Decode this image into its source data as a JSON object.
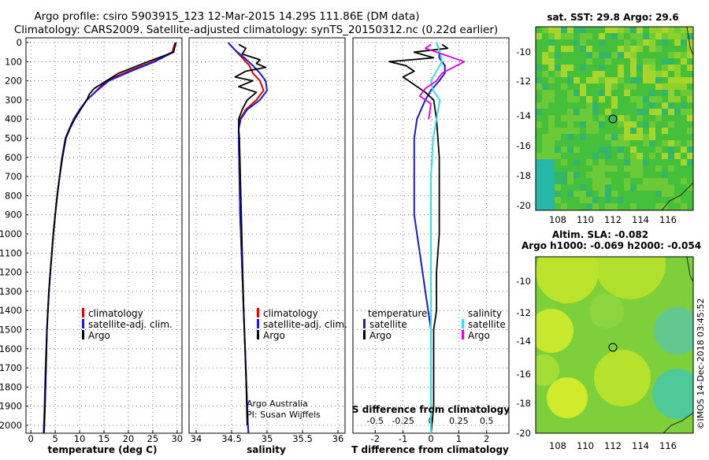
{
  "title_line1": "Argo profile: csiro 5903915_123 12-Mar-2015 14.29S 111.86E (DM data)",
  "title_line2": "Climatology: CARS2009. Satellite-adjusted climatology: synTS_20150312.nc (0.22d earlier)",
  "side_stamp": "©IMOS 14-Dec-2018 03:45:52",
  "colors": {
    "climatology": "#e00000",
    "satellite": "#1a1ad8",
    "argo": "#000000",
    "sat_salinity": "#33e0e8",
    "argo_salinity_diff": "#e000e0"
  },
  "depth_ticks": [
    0,
    100,
    200,
    300,
    400,
    500,
    600,
    700,
    800,
    900,
    1000,
    1100,
    1200,
    1300,
    1400,
    1500,
    1600,
    1700,
    1800,
    1900,
    2000
  ],
  "temperature_panel": {
    "xlabel": "temperature (deg C)",
    "xticks": [
      0,
      5,
      10,
      15,
      20,
      25,
      30
    ],
    "legend": [
      "climatology",
      "satellite-adj. clim.",
      "Argo"
    ]
  },
  "salinity_panel": {
    "xlabel": "salinity",
    "xticks": [
      "34",
      "34.5",
      "35",
      "35.5",
      "36"
    ],
    "legend": [
      "climatology",
      "satellite-adj. clim.",
      "Argo"
    ],
    "credit_line1": "Argo Australia",
    "credit_line2": "PI: Susan Wijffels"
  },
  "difference_panel": {
    "xlabel": "T difference from climatology",
    "xticks": [
      "-2",
      "-1",
      "0",
      "1",
      "2"
    ],
    "s_label": "S difference from climatology",
    "s_ticks": [
      "-0.5",
      "-0.25",
      "0",
      "0.25",
      "0.5"
    ],
    "legend_temperature_title": "temperature",
    "legend_salinity_title": "salinity",
    "legend_temperature": [
      "satellite",
      "Argo"
    ],
    "legend_salinity": [
      "satellite",
      "Argo"
    ]
  },
  "sst_map": {
    "title": "sat. SST: 29.8 Argo: 29.6",
    "xticks": [
      "108",
      "110",
      "112",
      "114",
      "116"
    ],
    "yticks": [
      "-10",
      "-12",
      "-14",
      "-16",
      "-18",
      "-20"
    ]
  },
  "sla_map": {
    "title_line1": "Altim. SLA: -0.082",
    "title_line2": "Argo h1000: -0.069 h2000: -0.054",
    "xticks": [
      "108",
      "110",
      "112",
      "114",
      "116"
    ],
    "yticks": [
      "-10",
      "-12",
      "-14",
      "-16",
      "-18",
      "-20"
    ]
  },
  "chart_data": [
    {
      "type": "line",
      "title": "",
      "xlabel": "temperature (deg C)",
      "ylabel": "",
      "xlim": [
        -1,
        31
      ],
      "ylim": [
        2060,
        0
      ],
      "series": [
        {
          "name": "climatology",
          "x": [
            29.6,
            29.0,
            25.0,
            20.0,
            15.5,
            13.5,
            11.5,
            10.0,
            8.8,
            7.9,
            7.1,
            6.4,
            5.9,
            5.4,
            5.0,
            4.6,
            4.3,
            4.0,
            3.7,
            3.5,
            3.3,
            3.1,
            2.9,
            2.7
          ],
          "y": [
            0,
            50,
            100,
            150,
            200,
            250,
            300,
            350,
            400,
            450,
            500,
            600,
            700,
            800,
            900,
            1000,
            1100,
            1200,
            1300,
            1400,
            1500,
            1700,
            1900,
            2050
          ]
        },
        {
          "name": "satellite-adj. clim.",
          "x": [
            29.8,
            29.2,
            25.4,
            20.5,
            16.0,
            13.6,
            11.5,
            10.0,
            8.8,
            7.9,
            7.1,
            6.4,
            5.9,
            5.4,
            5.0,
            4.6,
            4.3,
            4.0,
            3.7,
            3.5,
            3.3,
            3.0,
            2.8,
            2.6
          ],
          "y": [
            0,
            50,
            100,
            150,
            200,
            250,
            300,
            350,
            400,
            450,
            500,
            600,
            700,
            800,
            900,
            1000,
            1100,
            1200,
            1300,
            1400,
            1500,
            1700,
            1900,
            2050
          ]
        },
        {
          "name": "Argo",
          "x": [
            29.6,
            29.3,
            24.0,
            18.0,
            15.5,
            13.0,
            12.0,
            11.5,
            10.2,
            9.0,
            8.0,
            7.2,
            6.5,
            5.9,
            5.4,
            5.0,
            4.6,
            4.3,
            4.0,
            3.7,
            3.5,
            3.3,
            3.1,
            2.9,
            2.7
          ],
          "y": [
            5,
            50,
            100,
            160,
            200,
            240,
            270,
            300,
            350,
            400,
            450,
            500,
            600,
            700,
            800,
            900,
            1000,
            1100,
            1200,
            1300,
            1400,
            1500,
            1700,
            1900,
            2050
          ]
        }
      ]
    },
    {
      "type": "line",
      "title": "",
      "xlabel": "salinity",
      "ylabel": "",
      "xlim": [
        33.9,
        36.1
      ],
      "ylim": [
        2060,
        0
      ],
      "series": [
        {
          "name": "climatology",
          "x": [
            34.45,
            34.55,
            34.65,
            34.75,
            34.8,
            34.9,
            34.95,
            34.85,
            34.7,
            34.62,
            34.6,
            34.6,
            34.61,
            34.62,
            34.64,
            34.66,
            34.68,
            34.7,
            34.72,
            34.73,
            34.74
          ],
          "y": [
            0,
            40,
            80,
            120,
            160,
            200,
            250,
            300,
            350,
            400,
            450,
            500,
            700,
            900,
            1100,
            1300,
            1500,
            1700,
            1900,
            2000,
            2050
          ]
        },
        {
          "name": "satellite-adj. clim.",
          "x": [
            34.45,
            34.55,
            34.68,
            34.8,
            34.9,
            34.98,
            35.0,
            34.9,
            34.72,
            34.63,
            34.6,
            34.6,
            34.61,
            34.62,
            34.64,
            34.66,
            34.68,
            34.7,
            34.72,
            34.73,
            34.74
          ],
          "y": [
            0,
            40,
            80,
            120,
            160,
            200,
            250,
            300,
            350,
            400,
            450,
            500,
            700,
            900,
            1100,
            1300,
            1500,
            1700,
            1900,
            2000,
            2050
          ]
        },
        {
          "name": "Argo",
          "x": [
            34.6,
            34.7,
            34.65,
            34.9,
            34.85,
            34.98,
            34.7,
            34.55,
            34.8,
            34.6,
            34.85,
            34.72,
            34.65,
            34.6,
            34.6,
            34.61,
            34.63,
            34.65,
            34.67,
            34.7,
            34.72
          ],
          "y": [
            10,
            30,
            60,
            90,
            110,
            130,
            150,
            180,
            200,
            230,
            260,
            300,
            350,
            400,
            450,
            500,
            800,
            1100,
            1400,
            1700,
            2000
          ]
        }
      ]
    },
    {
      "type": "line",
      "title": "",
      "xlabel": "T difference from climatology",
      "ylabel": "",
      "xlim": [
        -2.8,
        2.8
      ],
      "ylim": [
        2060,
        0
      ],
      "secondary_xlabel": "S difference from climatology",
      "secondary_xlim": [
        -0.7,
        0.7
      ],
      "series": [
        {
          "name": "satellite",
          "quantity": "temperature",
          "x": [
            0.2,
            0.3,
            0.3,
            0.5,
            0.5,
            0.3,
            0.0,
            -0.2,
            -0.5,
            -0.6,
            -0.6,
            -0.6,
            -0.5,
            -0.4,
            -0.3,
            -0.2,
            -0.1,
            0.0,
            0.0
          ],
          "y": [
            0,
            40,
            80,
            120,
            160,
            200,
            250,
            300,
            400,
            500,
            700,
            900,
            1000,
            1100,
            1200,
            1300,
            1400,
            1500,
            1700
          ]
        },
        {
          "name": "Argo",
          "quantity": "temperature",
          "x": [
            0.4,
            0.6,
            -0.6,
            0.1,
            -1.5,
            -0.9,
            -0.6,
            -1.0,
            -0.6,
            -0.2,
            0.1,
            0.2,
            0.3,
            0.3,
            0.3,
            0.2,
            0.2,
            0.1,
            0.1,
            0.1,
            0.0
          ],
          "y": [
            10,
            30,
            50,
            80,
            100,
            120,
            150,
            180,
            220,
            260,
            300,
            400,
            600,
            800,
            1000,
            1200,
            1400,
            1500,
            1700,
            1900,
            2050
          ]
        },
        {
          "name": "satellite",
          "quantity": "salinity",
          "x": [
            0.05,
            0.08,
            0.1,
            0.05,
            0.0,
            0.02,
            0.08,
            0.05,
            0.02,
            0.0,
            0.0,
            0.0,
            0.0,
            0.0,
            0.0,
            0.0
          ],
          "y": [
            0,
            50,
            100,
            150,
            200,
            250,
            300,
            400,
            500,
            700,
            900,
            1100,
            1300,
            1500,
            1700,
            2050
          ]
        },
        {
          "name": "Argo",
          "quantity": "salinity",
          "x": [
            0.0,
            -0.05,
            0.1,
            0.3,
            0.2,
            0.1,
            0.05,
            -0.05,
            -0.1,
            0.0,
            -0.02
          ],
          "y": [
            10,
            30,
            60,
            100,
            130,
            160,
            200,
            240,
            280,
            320,
            400
          ]
        }
      ]
    }
  ]
}
